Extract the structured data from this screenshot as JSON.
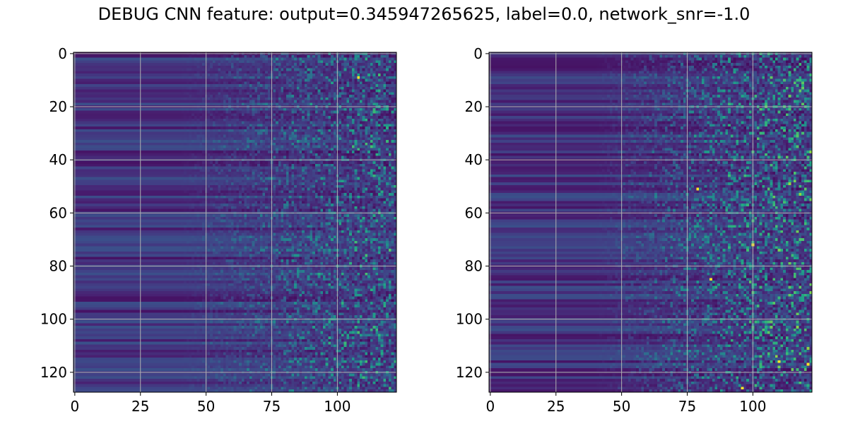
{
  "title": "DEBUG CNN feature: output=0.345947265625, label=0.0, network_snr=-1.0",
  "chart_data": [
    {
      "type": "heatmap",
      "title": "",
      "xlabel": "",
      "ylabel": "",
      "n_rows": 128,
      "n_cols": 123,
      "xlim": [
        0,
        122
      ],
      "ylim": [
        127,
        0
      ],
      "xticks": [
        0,
        25,
        50,
        75,
        100
      ],
      "yticks": [
        0,
        20,
        40,
        60,
        80,
        100,
        120
      ],
      "grid": true,
      "colormap": "viridis",
      "description": "Dark purple horizontal stripes for columns 0-45 varying by row; increasingly noisy speckle of teal/green values for columns > 60; sparse yellow maxima.",
      "bright_points": [
        [
          108,
          9
        ]
      ],
      "seed": 7
    },
    {
      "type": "heatmap",
      "title": "",
      "xlabel": "",
      "ylabel": "",
      "n_rows": 128,
      "n_cols": 123,
      "xlim": [
        0,
        122
      ],
      "ylim": [
        127,
        0
      ],
      "xticks": [
        0,
        25,
        50,
        75,
        100
      ],
      "yticks": [
        0,
        20,
        40,
        60,
        80,
        100,
        120
      ],
      "grid": true,
      "colormap": "viridis",
      "description": "Dark purple horizontal stripes for columns 0-45; denser teal/green speckle for columns > 60 with several yellow maxima.",
      "bright_points": [
        [
          100,
          72
        ],
        [
          96,
          126
        ],
        [
          84,
          85
        ],
        [
          79,
          51
        ],
        [
          110,
          116
        ],
        [
          121,
          117
        ]
      ],
      "seed": 13
    }
  ]
}
